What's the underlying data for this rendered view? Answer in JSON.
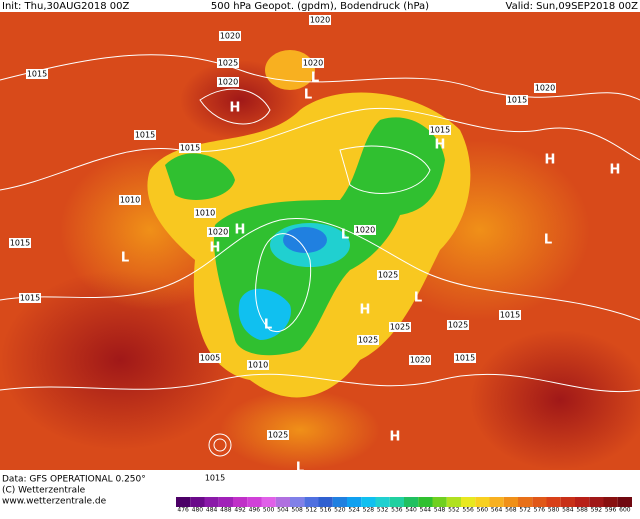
{
  "header": {
    "init": "Init: Thu,30AUG2018 00Z",
    "title": "500 hPa Geopot. (gpdm), Bodendruck (hPa)",
    "valid": "Valid: Sun,09SEP2018 00Z"
  },
  "isobar_labels": [
    "1020",
    "1020",
    "1025",
    "1020",
    "1015",
    "1020",
    "1015",
    "1015",
    "1015",
    "1010",
    "1010",
    "1020",
    "1015",
    "1020",
    "1025",
    "1015",
    "1015",
    "1025",
    "1025",
    "1020",
    "1025",
    "1015",
    "1010",
    "1025",
    "1015",
    "1005",
    "1020",
    "1015"
  ],
  "pressure_centers": [
    "H",
    "L",
    "H",
    "H",
    "L",
    "H",
    "L",
    "L",
    "H",
    "L",
    "L",
    "H",
    "L",
    "H",
    "L",
    "H"
  ],
  "footer": {
    "data": "Data: GFS OPERATIONAL 0.250°",
    "copyright": "(C) Wetterzentrale",
    "url": "www.wetterzentrale.de"
  },
  "colorbar": {
    "labels": [
      476,
      480,
      484,
      488,
      492,
      496,
      500,
      504,
      508,
      512,
      516,
      520,
      524,
      528,
      532,
      536,
      540,
      544,
      548,
      552,
      556,
      560,
      564,
      568,
      572,
      576,
      580,
      584,
      588,
      592,
      596,
      600
    ],
    "colors": [
      "#4b0066",
      "#6a0a8a",
      "#8a1aa8",
      "#a020b8",
      "#c030c8",
      "#d040d8",
      "#e060e8",
      "#b070e0",
      "#8080e8",
      "#5070e0",
      "#3060d0",
      "#2080e0",
      "#10a0f0",
      "#10c0f0",
      "#20d0d0",
      "#20d0a0",
      "#20c060",
      "#30c030",
      "#70d020",
      "#b0e020",
      "#e8e820",
      "#f8d020",
      "#f8b020",
      "#f09018",
      "#e87018",
      "#e05818",
      "#d84018",
      "#c83018",
      "#b82018",
      "#a01818",
      "#881010",
      "#700810"
    ]
  }
}
